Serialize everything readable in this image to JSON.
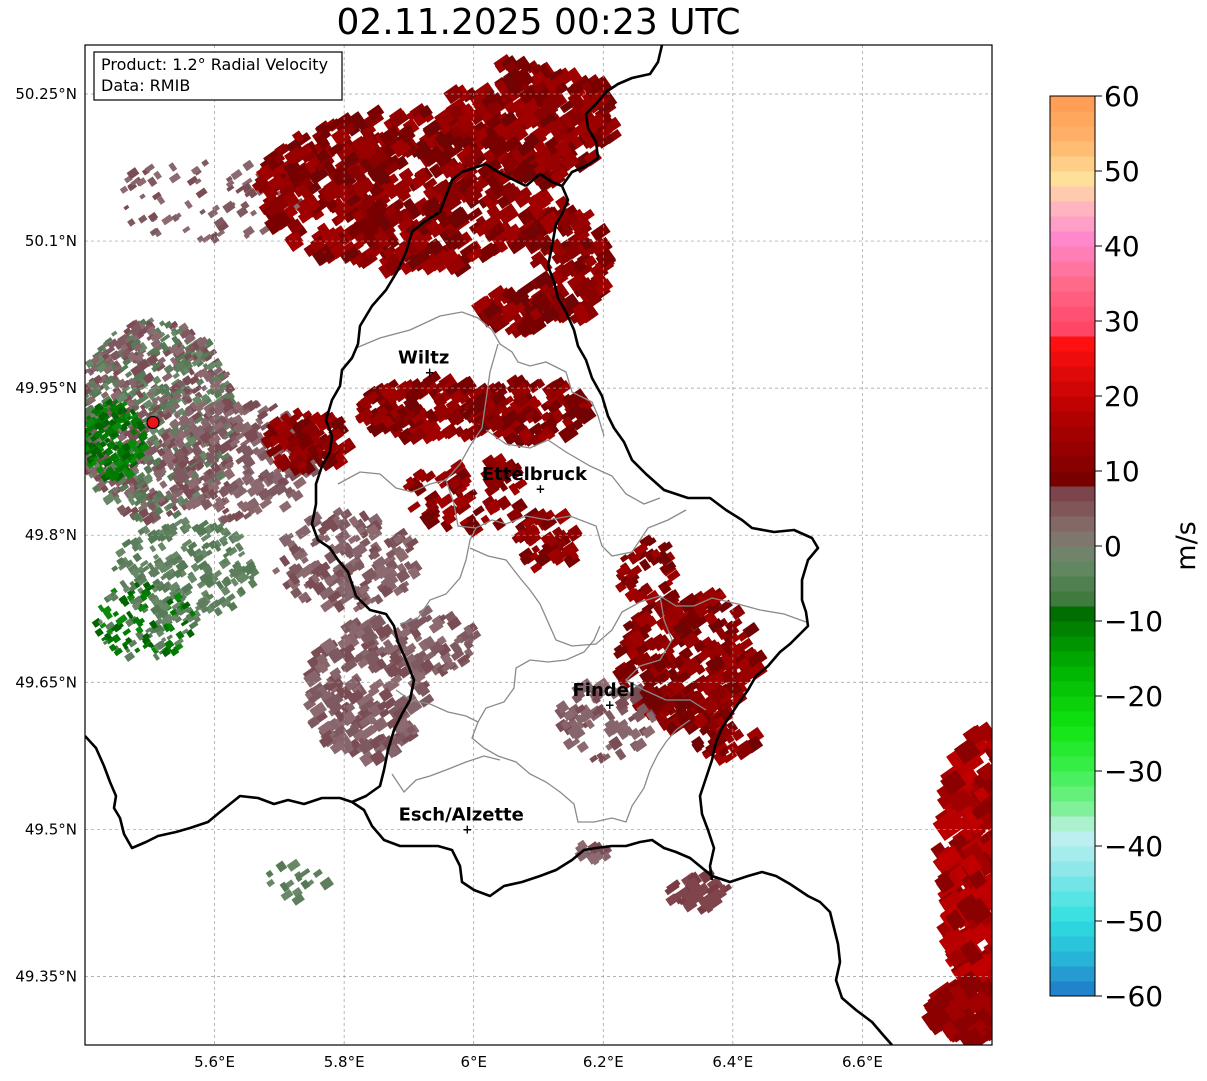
{
  "title": "02.11.2025 00:23 UTC",
  "info_box": {
    "line1": "Product: 1.2° Radial Velocity",
    "line2": "Data: RMIB"
  },
  "map_extent": {
    "lon_min": 5.4,
    "lon_max": 6.8,
    "lat_min": 49.28,
    "lat_max": 50.3
  },
  "lon_ticks": [
    {
      "value": 5.6,
      "label": "5.6°E"
    },
    {
      "value": 5.8,
      "label": "5.8°E"
    },
    {
      "value": 6.0,
      "label": "6°E"
    },
    {
      "value": 6.2,
      "label": "6.2°E"
    },
    {
      "value": 6.4,
      "label": "6.4°E"
    },
    {
      "value": 6.6,
      "label": "6.6°E"
    }
  ],
  "lat_ticks": [
    {
      "value": 50.25,
      "label": "50.25°N"
    },
    {
      "value": 50.1,
      "label": "50.1°N"
    },
    {
      "value": 49.95,
      "label": "49.95°N"
    },
    {
      "value": 49.8,
      "label": "49.8°N"
    },
    {
      "value": 49.65,
      "label": "49.65°N"
    },
    {
      "value": 49.5,
      "label": "49.5°N"
    },
    {
      "value": 49.35,
      "label": "49.35°N"
    }
  ],
  "cities": [
    {
      "name": "Wiltz",
      "lon": 5.932,
      "lat": 49.966
    },
    {
      "name": "Ettelbruck",
      "lon": 6.103,
      "lat": 49.847
    },
    {
      "name": "Findel",
      "lon": 6.21,
      "lat": 49.627
    },
    {
      "name": "Esch/Alzette",
      "lon": 5.99,
      "lat": 49.5
    }
  ],
  "radar_site": {
    "lon": 5.505,
    "lat": 49.915,
    "color": "#e8141a"
  },
  "colorbar": {
    "label": "m/s",
    "min": -60,
    "max": 60,
    "ticks": [
      {
        "value": 60,
        "label": "60"
      },
      {
        "value": 50,
        "label": "50"
      },
      {
        "value": 40,
        "label": "40"
      },
      {
        "value": 30,
        "label": "30"
      },
      {
        "value": 20,
        "label": "20"
      },
      {
        "value": 10,
        "label": "10"
      },
      {
        "value": 0,
        "label": "0"
      },
      {
        "value": -10,
        "label": "−10"
      },
      {
        "value": -20,
        "label": "−20"
      },
      {
        "value": -30,
        "label": "−30"
      },
      {
        "value": -40,
        "label": "−40"
      },
      {
        "value": -50,
        "label": "−50"
      },
      {
        "value": -60,
        "label": "−60"
      }
    ],
    "stops": [
      {
        "value": -60,
        "color": "#1f78c8"
      },
      {
        "value": -55,
        "color": "#27b4d8"
      },
      {
        "value": -50,
        "color": "#2fdfe0"
      },
      {
        "value": -43,
        "color": "#8ee8ea"
      },
      {
        "value": -38,
        "color": "#c8f2f2"
      },
      {
        "value": -36,
        "color": "#8ef0a8"
      },
      {
        "value": -30,
        "color": "#3cf050"
      },
      {
        "value": -24,
        "color": "#10e410"
      },
      {
        "value": -16,
        "color": "#00b000"
      },
      {
        "value": -8,
        "color": "#006400"
      },
      {
        "value": -7,
        "color": "#3f7a3f"
      },
      {
        "value": -2,
        "color": "#6a8a6a"
      },
      {
        "value": 2,
        "color": "#86706e"
      },
      {
        "value": 8,
        "color": "#7a3c44"
      },
      {
        "value": 9,
        "color": "#7a0000"
      },
      {
        "value": 18,
        "color": "#b80000"
      },
      {
        "value": 27,
        "color": "#ff1010"
      },
      {
        "value": 28,
        "color": "#ff4060"
      },
      {
        "value": 35,
        "color": "#ff6a8a"
      },
      {
        "value": 41,
        "color": "#ff88cc"
      },
      {
        "value": 45,
        "color": "#ffb4c0"
      },
      {
        "value": 49,
        "color": "#ffe09a"
      },
      {
        "value": 54,
        "color": "#ffb46a"
      },
      {
        "value": 60,
        "color": "#ff9a50"
      }
    ]
  }
}
